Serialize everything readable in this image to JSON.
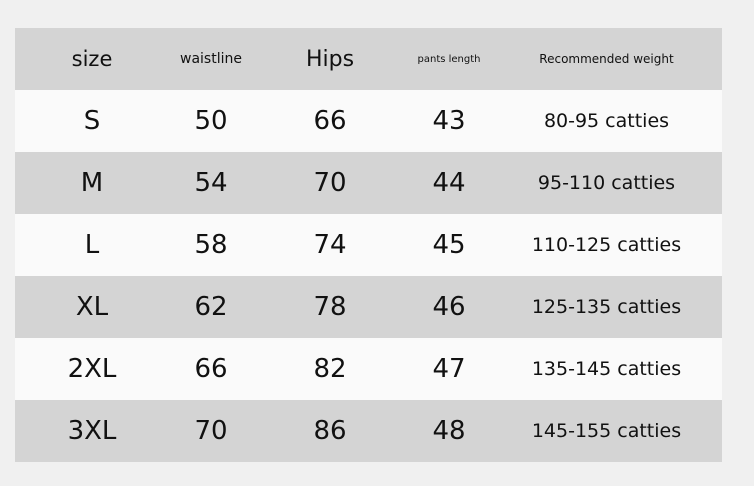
{
  "table": {
    "headers": [
      "size",
      "waistline",
      "Hips",
      "pants length",
      "Recommended weight"
    ],
    "rows": [
      [
        "S",
        "50",
        "66",
        "43",
        "80-95 catties"
      ],
      [
        "M",
        "54",
        "70",
        "44",
        "95-110 catties"
      ],
      [
        "L",
        "58",
        "74",
        "45",
        "110-125 catties"
      ],
      [
        "XL",
        "62",
        "78",
        "46",
        "125-135 catties"
      ],
      [
        "2XL",
        "66",
        "82",
        "47",
        "135-145 catties"
      ],
      [
        "3XL",
        "70",
        "86",
        "48",
        "145-155 catties"
      ]
    ]
  },
  "colors": {
    "background": "#f0f0f0",
    "stripe_dark": "#d4d4d4",
    "stripe_light": "#fafafa"
  }
}
